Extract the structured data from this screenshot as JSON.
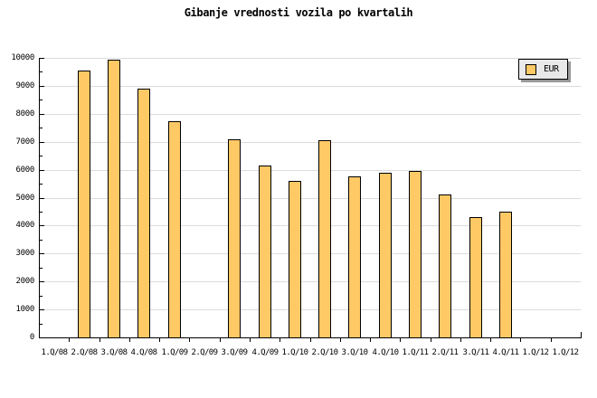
{
  "title": "Gibanje vrednosti vozila po kvartalih",
  "legend": {
    "label": "EUR"
  },
  "chart_data": {
    "type": "bar",
    "title": "Gibanje vrednosti vozila po kvartalih",
    "categories": [
      "1.Q/08",
      "2.Q/08",
      "3.Q/08",
      "4.Q/08",
      "1.Q/09",
      "2.Q/09",
      "3.Q/09",
      "4.Q/09",
      "1.Q/10",
      "2.Q/10",
      "3.Q/10",
      "4.Q/10",
      "1.Q/11",
      "2.Q/11",
      "3.Q/11",
      "4.Q/11",
      "1.Q/12",
      "1.Q/12"
    ],
    "series": [
      {
        "name": "EUR",
        "values": [
          null,
          9550,
          9950,
          8900,
          7750,
          null,
          7100,
          6150,
          5600,
          7050,
          5750,
          5900,
          5950,
          5100,
          4300,
          4500,
          null,
          null
        ]
      }
    ],
    "xlabel": "",
    "ylabel": "",
    "ylim": [
      0,
      10000
    ],
    "yticks": [
      0,
      1000,
      2000,
      3000,
      4000,
      5000,
      6000,
      7000,
      8000,
      9000,
      10000
    ],
    "ytick_minor_step": 500,
    "grid": "horizontal-major",
    "legend_position": "top-right",
    "colors": {
      "bar_fill": "#FFC966",
      "bar_border": "#000000",
      "grid": "#DCDCDC",
      "axis": "#000000",
      "legend_bg": "#E9E9E9",
      "legend_shadow": "#999999",
      "background": "#FFFFFF",
      "text": "#000000"
    }
  }
}
